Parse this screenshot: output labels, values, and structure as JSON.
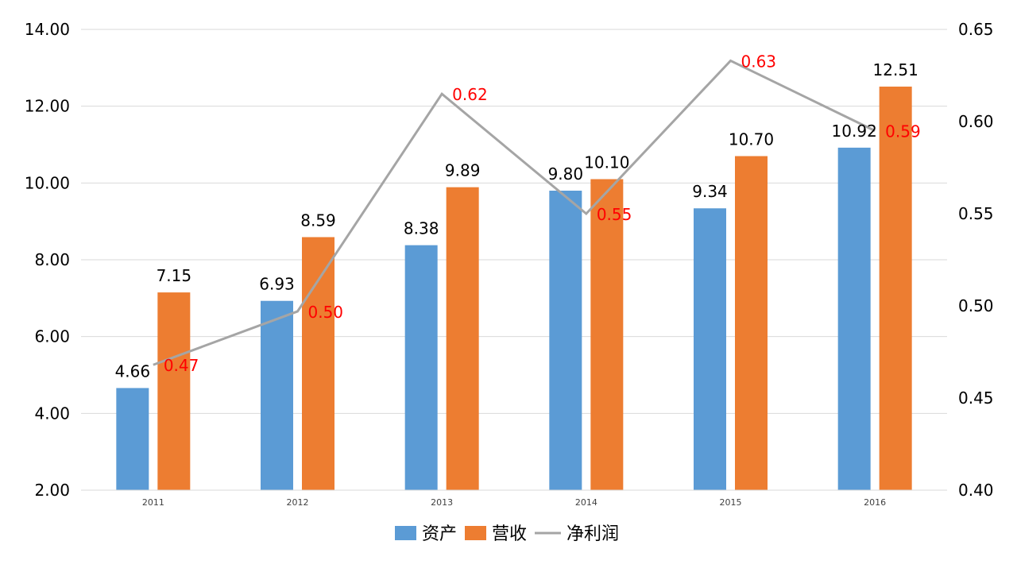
{
  "chart_data": {
    "type": "bar",
    "categories": [
      "2011",
      "2012",
      "2013",
      "2014",
      "2015",
      "2016"
    ],
    "series": [
      {
        "name": "资产",
        "type": "bar",
        "axis": "left",
        "color": "#5B9BD5",
        "values": [
          4.66,
          6.93,
          8.38,
          9.8,
          9.34,
          10.92
        ],
        "labels": [
          "4.66",
          "6.93",
          "8.38",
          "9.80",
          "9.34",
          "10.92"
        ]
      },
      {
        "name": "营收",
        "type": "bar",
        "axis": "left",
        "color": "#ED7D31",
        "values": [
          7.15,
          8.59,
          9.89,
          10.1,
          10.7,
          12.51
        ],
        "labels": [
          "7.15",
          "8.59",
          "9.89",
          "10.10",
          "10.70",
          "12.51"
        ]
      },
      {
        "name": "净利润",
        "type": "line",
        "axis": "right",
        "color": "#A5A5A5",
        "label_color": "#FF0000",
        "values": [
          0.468,
          0.497,
          0.615,
          0.55,
          0.633,
          0.595
        ],
        "labels": [
          "0.47",
          "0.50",
          "0.62",
          "0.55",
          "0.63",
          "0.59"
        ]
      }
    ],
    "y_left": {
      "min": 2,
      "max": 14,
      "ticks": [
        "2.00",
        "4.00",
        "6.00",
        "8.00",
        "10.00",
        "12.00",
        "14.00"
      ]
    },
    "y_right": {
      "min": 0.4,
      "max": 0.65,
      "ticks": [
        "0.40",
        "0.45",
        "0.50",
        "0.55",
        "0.60",
        "0.65"
      ]
    },
    "grid": true,
    "legend_position": "bottom",
    "title": "",
    "xlabel": "",
    "ylabel": ""
  }
}
